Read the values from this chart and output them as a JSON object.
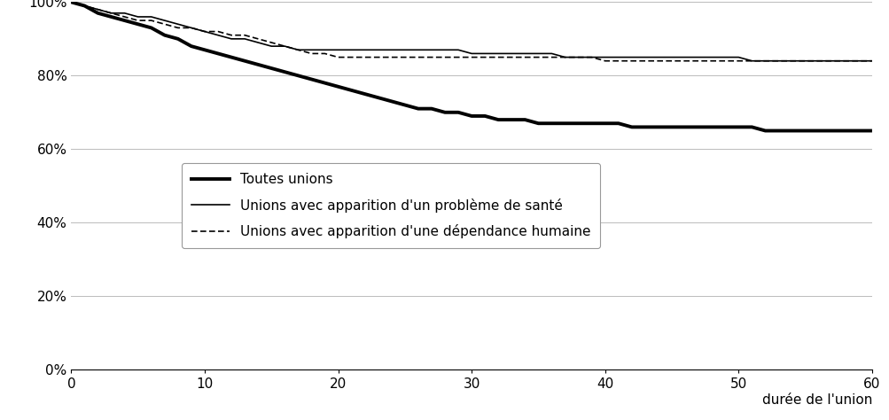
{
  "title": "",
  "xlabel": "durée de l'union",
  "ylabel": "",
  "xlim": [
    0,
    60
  ],
  "ylim": [
    0,
    1.0
  ],
  "yticks": [
    0.0,
    0.2,
    0.4,
    0.6,
    0.8,
    1.0
  ],
  "ytick_labels": [
    "0%",
    "20%",
    "40%",
    "60%",
    "80%",
    "100%"
  ],
  "xticks": [
    0,
    10,
    20,
    30,
    40,
    50,
    60
  ],
  "background_color": "#ffffff",
  "grid_color": "#bbbbbb",
  "line_color": "#000000",
  "toutes_unions_x": [
    0,
    1,
    2,
    3,
    4,
    5,
    6,
    7,
    8,
    9,
    10,
    11,
    12,
    13,
    14,
    15,
    16,
    17,
    18,
    19,
    20,
    21,
    22,
    23,
    24,
    25,
    26,
    27,
    28,
    29,
    30,
    31,
    32,
    33,
    34,
    35,
    36,
    37,
    38,
    39,
    40,
    41,
    42,
    43,
    44,
    45,
    46,
    47,
    48,
    49,
    50,
    51,
    52,
    53,
    54,
    55,
    56,
    57,
    58,
    59,
    60
  ],
  "toutes_unions_y": [
    1.0,
    0.99,
    0.97,
    0.96,
    0.95,
    0.94,
    0.93,
    0.91,
    0.9,
    0.88,
    0.87,
    0.86,
    0.85,
    0.84,
    0.83,
    0.82,
    0.81,
    0.8,
    0.79,
    0.78,
    0.77,
    0.76,
    0.75,
    0.74,
    0.73,
    0.72,
    0.71,
    0.71,
    0.7,
    0.7,
    0.69,
    0.69,
    0.68,
    0.68,
    0.68,
    0.67,
    0.67,
    0.67,
    0.67,
    0.67,
    0.67,
    0.67,
    0.66,
    0.66,
    0.66,
    0.66,
    0.66,
    0.66,
    0.66,
    0.66,
    0.66,
    0.66,
    0.65,
    0.65,
    0.65,
    0.65,
    0.65,
    0.65,
    0.65,
    0.65,
    0.65
  ],
  "sante_x": [
    0,
    1,
    2,
    3,
    4,
    5,
    6,
    7,
    8,
    9,
    10,
    11,
    12,
    13,
    14,
    15,
    16,
    17,
    18,
    19,
    20,
    21,
    22,
    23,
    24,
    25,
    26,
    27,
    28,
    29,
    30,
    31,
    32,
    33,
    34,
    35,
    36,
    37,
    38,
    39,
    40,
    41,
    42,
    43,
    44,
    45,
    46,
    47,
    48,
    49,
    50,
    51,
    52,
    53,
    54,
    55,
    56,
    57,
    58,
    59,
    60
  ],
  "sante_y": [
    1.0,
    0.99,
    0.98,
    0.97,
    0.97,
    0.96,
    0.96,
    0.95,
    0.94,
    0.93,
    0.92,
    0.91,
    0.9,
    0.9,
    0.89,
    0.88,
    0.88,
    0.87,
    0.87,
    0.87,
    0.87,
    0.87,
    0.87,
    0.87,
    0.87,
    0.87,
    0.87,
    0.87,
    0.87,
    0.87,
    0.86,
    0.86,
    0.86,
    0.86,
    0.86,
    0.86,
    0.86,
    0.85,
    0.85,
    0.85,
    0.85,
    0.85,
    0.85,
    0.85,
    0.85,
    0.85,
    0.85,
    0.85,
    0.85,
    0.85,
    0.85,
    0.84,
    0.84,
    0.84,
    0.84,
    0.84,
    0.84,
    0.84,
    0.84,
    0.84,
    0.84
  ],
  "dependance_x": [
    0,
    1,
    2,
    3,
    4,
    5,
    6,
    7,
    8,
    9,
    10,
    11,
    12,
    13,
    14,
    15,
    16,
    17,
    18,
    19,
    20,
    21,
    22,
    23,
    24,
    25,
    26,
    27,
    28,
    29,
    30,
    31,
    32,
    33,
    34,
    35,
    36,
    37,
    38,
    39,
    40,
    41,
    42,
    43,
    44,
    45,
    46,
    47,
    48,
    49,
    50,
    51,
    52,
    53,
    54,
    55,
    56,
    57,
    58,
    59,
    60
  ],
  "dependance_y": [
    1.0,
    0.99,
    0.98,
    0.97,
    0.96,
    0.95,
    0.95,
    0.94,
    0.93,
    0.93,
    0.92,
    0.92,
    0.91,
    0.91,
    0.9,
    0.89,
    0.88,
    0.87,
    0.86,
    0.86,
    0.85,
    0.85,
    0.85,
    0.85,
    0.85,
    0.85,
    0.85,
    0.85,
    0.85,
    0.85,
    0.85,
    0.85,
    0.85,
    0.85,
    0.85,
    0.85,
    0.85,
    0.85,
    0.85,
    0.85,
    0.84,
    0.84,
    0.84,
    0.84,
    0.84,
    0.84,
    0.84,
    0.84,
    0.84,
    0.84,
    0.84,
    0.84,
    0.84,
    0.84,
    0.84,
    0.84,
    0.84,
    0.84,
    0.84,
    0.84,
    0.84
  ],
  "legend_labels": [
    "Toutes unions",
    "Unions avec apparition d'un problème de santé",
    "Unions avec apparition d'une dépendance humaine"
  ],
  "fontsize_ticks": 11,
  "fontsize_xlabel": 11,
  "fontsize_legend": 11
}
